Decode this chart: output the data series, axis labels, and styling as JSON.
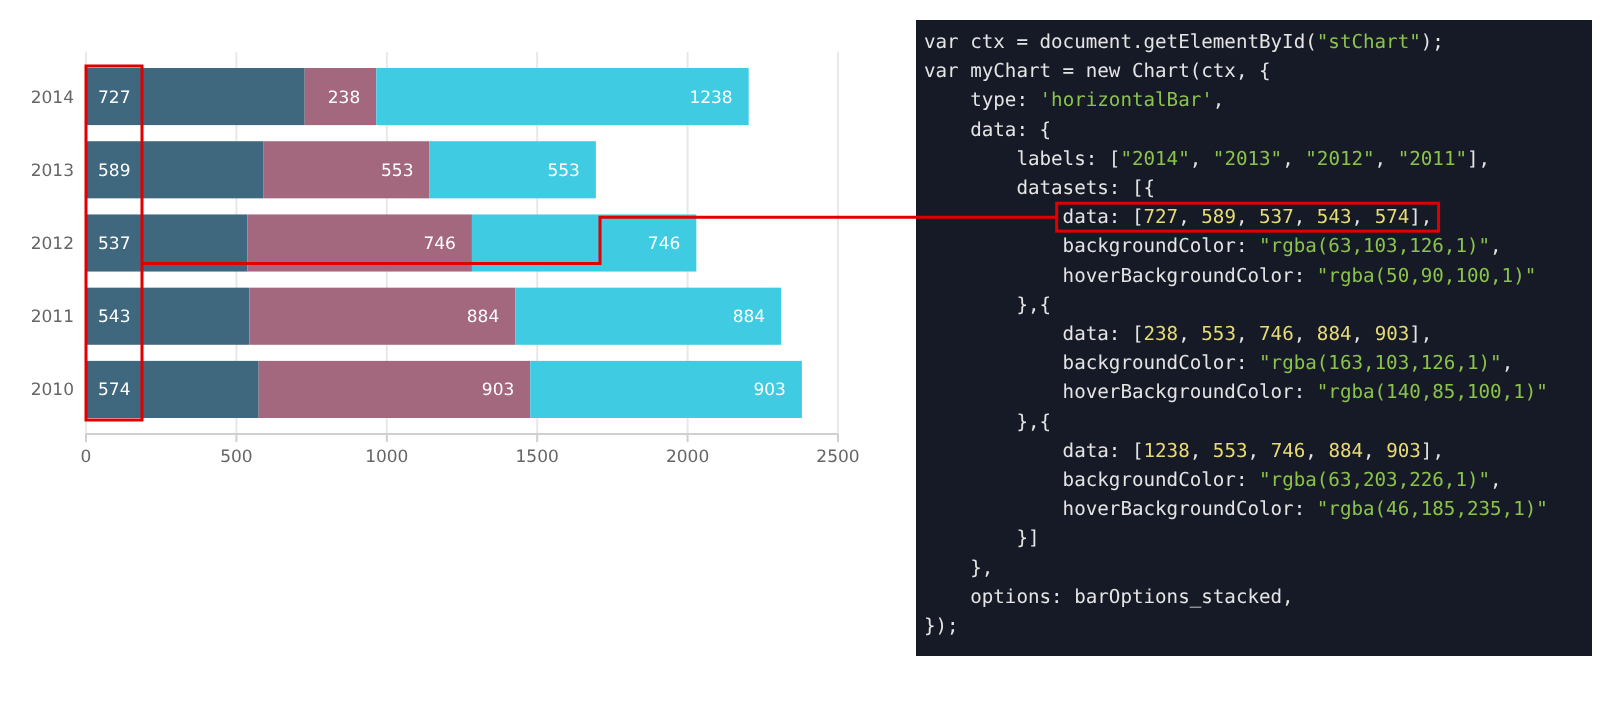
{
  "chart_data": {
    "type": "bar",
    "orientation": "horizontal",
    "stacked": true,
    "categories": [
      "2014",
      "2013",
      "2012",
      "2011",
      "2010"
    ],
    "series": [
      {
        "color": "#3f677e",
        "values": [
          727,
          589,
          537,
          543,
          574
        ]
      },
      {
        "color": "#a3677e",
        "values": [
          238,
          553,
          746,
          884,
          903
        ]
      },
      {
        "color": "#3fcbe2",
        "values": [
          1238,
          553,
          746,
          884,
          903
        ]
      }
    ],
    "xlim": [
      0,
      2500
    ],
    "xticks": [
      0,
      500,
      1000,
      1500,
      2000,
      2500
    ],
    "grid": "x",
    "data_labels": true,
    "annotations": [
      "var ctx = document.getElementById(\"stChart\");",
      "var myChart = new Chart(ctx, {",
      "    type: 'horizontalBar',",
      "    data: {",
      "        labels: [\"2014\", \"2013\", \"2012\", \"2011\"],",
      "        datasets: [{",
      "            data: [727, 589, 537, 543, 574],",
      "            backgroundColor: \"rgba(63,103,126,1)\",",
      "            hoverBackgroundColor: \"rgba(50,90,100,1)\"",
      "        },{",
      "            data: [238, 553, 746, 884, 903],",
      "            backgroundColor: \"rgba(163,103,126,1)\",",
      "            hoverBackgroundColor: \"rgba(140,85,100,1)\"",
      "        },{",
      "            data: [1238, 553, 746, 884, 903],",
      "            backgroundColor: \"rgba(63,203,226,1)\",",
      "            hoverBackgroundColor: \"rgba(46,185,235,1)\"",
      "        }]",
      "    },",
      "    options: barOptions_stacked,",
      "});"
    ]
  }
}
